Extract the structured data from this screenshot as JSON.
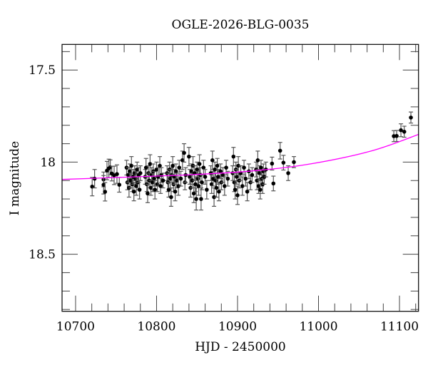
{
  "chart_data": {
    "type": "scatter",
    "title": "OGLE-2026-BLG-0035",
    "xlabel": "HJD - 2450000",
    "ylabel": "I magnitude",
    "xlim": [
      10683.3,
      11123.5
    ],
    "ylim": [
      18.81,
      17.361
    ],
    "y_inverted": true,
    "x_ticks": [
      10700,
      10800,
      10900,
      11000,
      11100
    ],
    "x_tick_labels": [
      "10700",
      "10800",
      "10900",
      "11000",
      "11100"
    ],
    "x_minor_step": 20,
    "y_ticks": [
      17.5,
      18,
      18.5
    ],
    "y_tick_labels": [
      "17.5",
      "18",
      "18.5"
    ],
    "y_minor_step": 0.1,
    "grid": false,
    "colors": {
      "points": "#000000",
      "errorbars": "#555555",
      "model": "#ff00ff"
    },
    "points": [
      [
        10720.5,
        18.133,
        0.05
      ],
      [
        10723.5,
        18.09,
        0.05
      ],
      [
        10734.6,
        18.094,
        0.04
      ],
      [
        10734.6,
        18.123,
        0.05
      ],
      [
        10736.4,
        18.161,
        0.05
      ],
      [
        10738.8,
        18.046,
        0.05
      ],
      [
        10741.1,
        18.034,
        0.05
      ],
      [
        10742.9,
        18.028,
        0.04
      ],
      [
        10744.7,
        18.062,
        0.04
      ],
      [
        10747.6,
        18.072,
        0.05
      ],
      [
        10751.1,
        18.065,
        0.05
      ],
      [
        10754.0,
        18.123,
        0.04
      ],
      [
        10763,
        18.03,
        0.04
      ],
      [
        10764,
        18.11,
        0.04
      ],
      [
        10765,
        18.07,
        0.04
      ],
      [
        10766,
        18.14,
        0.05
      ],
      [
        10767,
        18.05,
        0.04
      ],
      [
        10768,
        18.1,
        0.04
      ],
      [
        10769,
        18.02,
        0.05
      ],
      [
        10770,
        18.12,
        0.04
      ],
      [
        10771,
        18.08,
        0.04
      ],
      [
        10772,
        18.16,
        0.05
      ],
      [
        10773,
        18.06,
        0.04
      ],
      [
        10774,
        18.09,
        0.04
      ],
      [
        10775,
        18.13,
        0.05
      ],
      [
        10776,
        18.04,
        0.04
      ],
      [
        10777,
        18.11,
        0.04
      ],
      [
        10778,
        18.07,
        0.04
      ],
      [
        10779,
        18.15,
        0.05
      ],
      [
        10780,
        18.06,
        0.04
      ],
      [
        10786,
        18.08,
        0.04
      ],
      [
        10787,
        18.03,
        0.05
      ],
      [
        10788,
        18.12,
        0.04
      ],
      [
        10789,
        18.17,
        0.05
      ],
      [
        10790,
        18.06,
        0.04
      ],
      [
        10791,
        18.1,
        0.04
      ],
      [
        10792,
        18.01,
        0.05
      ],
      [
        10793,
        18.14,
        0.04
      ],
      [
        10794,
        18.07,
        0.04
      ],
      [
        10795,
        18.11,
        0.05
      ],
      [
        10796,
        18.05,
        0.04
      ],
      [
        10797,
        18.09,
        0.04
      ],
      [
        10798,
        18.15,
        0.05
      ],
      [
        10800,
        18.04,
        0.04
      ],
      [
        10801,
        18.12,
        0.04
      ],
      [
        10802,
        18.08,
        0.05
      ],
      [
        10804,
        18.02,
        0.05
      ],
      [
        10805,
        18.13,
        0.04
      ],
      [
        10806,
        18.07,
        0.04
      ],
      [
        10808,
        18.1,
        0.04
      ],
      [
        10813,
        18.06,
        0.04
      ],
      [
        10814,
        18.11,
        0.05
      ],
      [
        10815,
        18.15,
        0.04
      ],
      [
        10816,
        18.04,
        0.04
      ],
      [
        10817,
        18.09,
        0.05
      ],
      [
        10818,
        18.19,
        0.05
      ],
      [
        10819,
        18.07,
        0.04
      ],
      [
        10820,
        18.02,
        0.05
      ],
      [
        10821,
        18.12,
        0.04
      ],
      [
        10822,
        18.08,
        0.04
      ],
      [
        10823,
        18.16,
        0.05
      ],
      [
        10824,
        18.05,
        0.04
      ],
      [
        10825,
        18.1,
        0.04
      ],
      [
        10827,
        18.13,
        0.05
      ],
      [
        10828,
        18.03,
        0.04
      ],
      [
        10830,
        18.09,
        0.04
      ],
      [
        10832,
        17.99,
        0.05
      ],
      [
        10834,
        17.95,
        0.05
      ],
      [
        10835,
        18.11,
        0.04
      ],
      [
        10836,
        18.07,
        0.04
      ],
      [
        10840,
        17.97,
        0.05
      ],
      [
        10841,
        18.08,
        0.04
      ],
      [
        10842,
        18.14,
        0.05
      ],
      [
        10843,
        18.05,
        0.04
      ],
      [
        10844,
        18.1,
        0.04
      ],
      [
        10845,
        18.02,
        0.05
      ],
      [
        10846,
        18.17,
        0.05
      ],
      [
        10847,
        18.06,
        0.04
      ],
      [
        10848,
        18.12,
        0.04
      ],
      [
        10849,
        18.2,
        0.06
      ],
      [
        10850,
        18.04,
        0.04
      ],
      [
        10851,
        18.09,
        0.04
      ],
      [
        10852,
        18.13,
        0.05
      ],
      [
        10853,
        18.01,
        0.05
      ],
      [
        10854,
        18.07,
        0.04
      ],
      [
        10855,
        18.2,
        0.06
      ],
      [
        10856,
        18.11,
        0.04
      ],
      [
        10858,
        18.03,
        0.04
      ],
      [
        10860,
        18.08,
        0.04
      ],
      [
        10862,
        18.15,
        0.05
      ],
      [
        10867,
        18.06,
        0.04
      ],
      [
        10868,
        18.12,
        0.05
      ],
      [
        10869,
        17.99,
        0.05
      ],
      [
        10870,
        18.09,
        0.04
      ],
      [
        10871,
        18.19,
        0.05
      ],
      [
        10872,
        18.04,
        0.04
      ],
      [
        10873,
        18.1,
        0.04
      ],
      [
        10874,
        18.14,
        0.05
      ],
      [
        10875,
        18.02,
        0.04
      ],
      [
        10876,
        18.08,
        0.04
      ],
      [
        10877,
        18.16,
        0.05
      ],
      [
        10879,
        18.05,
        0.04
      ],
      [
        10880,
        18.11,
        0.04
      ],
      [
        10882,
        18.07,
        0.04
      ],
      [
        10884,
        18.13,
        0.05
      ],
      [
        10886,
        18.03,
        0.04
      ],
      [
        10888,
        18.09,
        0.04
      ],
      [
        10894,
        18.06,
        0.04
      ],
      [
        10895,
        17.97,
        0.05
      ],
      [
        10896,
        18.11,
        0.05
      ],
      [
        10897,
        18.15,
        0.05
      ],
      [
        10898,
        18.04,
        0.04
      ],
      [
        10899,
        18.08,
        0.04
      ],
      [
        10900,
        18.18,
        0.05
      ],
      [
        10901,
        18.02,
        0.05
      ],
      [
        10902,
        18.1,
        0.04
      ],
      [
        10904,
        18.06,
        0.04
      ],
      [
        10906,
        18.13,
        0.05
      ],
      [
        10908,
        18.03,
        0.04
      ],
      [
        10910,
        18.09,
        0.04
      ],
      [
        10912,
        18.16,
        0.05
      ],
      [
        10914,
        18.05,
        0.04
      ],
      [
        10916,
        18.11,
        0.04
      ],
      [
        10918,
        18.07,
        0.04
      ],
      [
        10923,
        18.04,
        0.04
      ],
      [
        10924,
        18.1,
        0.05
      ],
      [
        10925,
        17.99,
        0.05
      ],
      [
        10926,
        18.13,
        0.04
      ],
      [
        10927,
        18.06,
        0.04
      ],
      [
        10928,
        18.15,
        0.05
      ],
      [
        10929,
        18.03,
        0.04
      ],
      [
        10930,
        18.09,
        0.04
      ],
      [
        10931,
        18.12,
        0.05
      ],
      [
        10932,
        18.05,
        0.04
      ],
      [
        10933,
        18.08,
        0.04
      ],
      [
        10935,
        18.04,
        0.04
      ],
      [
        10942.6,
        18.008,
        0.035
      ],
      [
        10944.3,
        18.116,
        0.04
      ],
      [
        10952.6,
        17.938,
        0.045
      ],
      [
        10956.7,
        18.003,
        0.04
      ],
      [
        10962.6,
        18.06,
        0.04
      ],
      [
        10969.6,
        18.0,
        0.03
      ],
      [
        11093.0,
        17.859,
        0.03
      ],
      [
        11096.5,
        17.858,
        0.03
      ],
      [
        11101.8,
        17.827,
        0.035
      ],
      [
        11105.9,
        17.835,
        0.03
      ],
      [
        11114.1,
        17.758,
        0.03
      ]
    ],
    "model": [
      [
        10683.3,
        18.094
      ],
      [
        10760,
        18.082
      ],
      [
        10844.5,
        18.068
      ],
      [
        10915,
        18.049
      ],
      [
        10985.5,
        18.013
      ],
      [
        11064.8,
        17.94
      ],
      [
        11124,
        17.849
      ]
    ]
  }
}
